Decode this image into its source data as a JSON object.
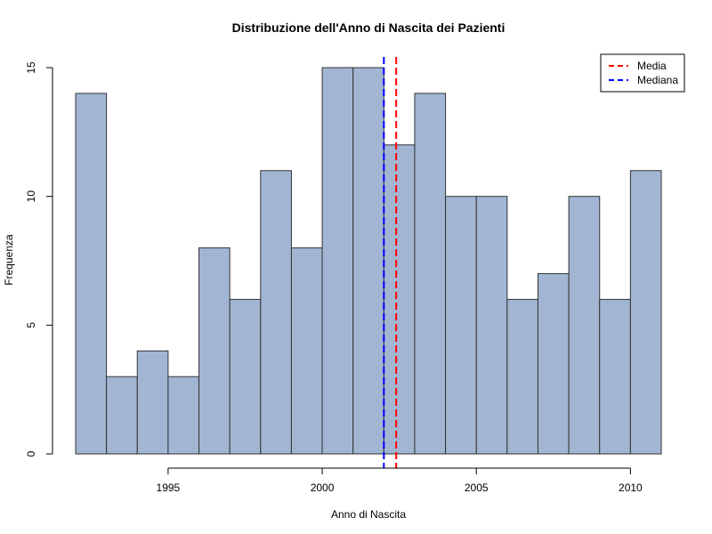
{
  "colors": {
    "bar_fill": "#a2b6d4",
    "bar_stroke": "#333333",
    "mean_line": "#ff0000",
    "median_line": "#0000ff",
    "axis": "#000000"
  },
  "chart_data": {
    "type": "histogram",
    "title": "Distribuzione dell'Anno di Nascita dei Pazienti",
    "xlabel": "Anno di Nascita",
    "ylabel": "Frequenza",
    "bins": [
      {
        "start": 1992,
        "end": 1993,
        "count": 14
      },
      {
        "start": 1993,
        "end": 1994,
        "count": 3
      },
      {
        "start": 1994,
        "end": 1995,
        "count": 4
      },
      {
        "start": 1995,
        "end": 1996,
        "count": 3
      },
      {
        "start": 1996,
        "end": 1997,
        "count": 8
      },
      {
        "start": 1997,
        "end": 1998,
        "count": 6
      },
      {
        "start": 1998,
        "end": 1999,
        "count": 11
      },
      {
        "start": 1999,
        "end": 2000,
        "count": 8
      },
      {
        "start": 2000,
        "end": 2001,
        "count": 15
      },
      {
        "start": 2001,
        "end": 2002,
        "count": 15
      },
      {
        "start": 2002,
        "end": 2003,
        "count": 12
      },
      {
        "start": 2003,
        "end": 2004,
        "count": 14
      },
      {
        "start": 2004,
        "end": 2005,
        "count": 10
      },
      {
        "start": 2005,
        "end": 2006,
        "count": 10
      },
      {
        "start": 2006,
        "end": 2007,
        "count": 6
      },
      {
        "start": 2007,
        "end": 2008,
        "count": 7
      },
      {
        "start": 2008,
        "end": 2009,
        "count": 10
      },
      {
        "start": 2009,
        "end": 2010,
        "count": 6
      },
      {
        "start": 2010,
        "end": 2011,
        "count": 11
      }
    ],
    "xlim": [
      1992,
      2011
    ],
    "ylim": [
      0,
      15
    ],
    "xticks": [
      1995,
      2000,
      2005,
      2010
    ],
    "yticks": [
      0,
      5,
      10,
      15
    ],
    "mean": 2002.4,
    "median": 2002,
    "legend": {
      "placement": "top-right",
      "items": [
        {
          "label": "Media",
          "color": "#ff0000"
        },
        {
          "label": "Mediana",
          "color": "#0000ff"
        }
      ]
    }
  }
}
